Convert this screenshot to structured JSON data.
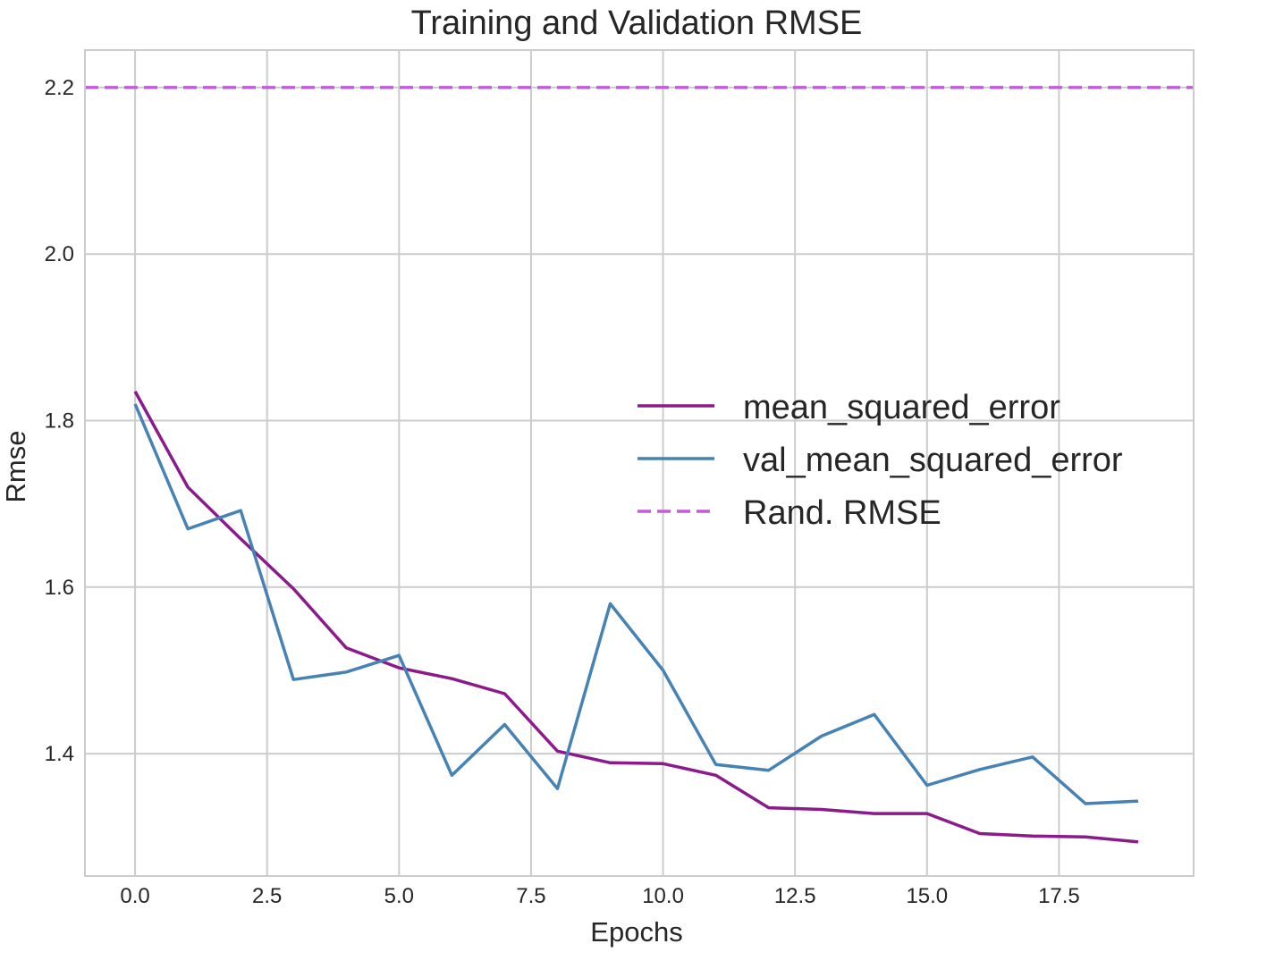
{
  "chart_data": {
    "type": "line",
    "title": "Training and Validation RMSE",
    "xlabel": "Epochs",
    "ylabel": "Rmse",
    "xlim": [
      -0.95,
      20.05
    ],
    "ylim": [
      1.253,
      2.245
    ],
    "xticks": [
      0.0,
      2.5,
      5.0,
      7.5,
      10.0,
      12.5,
      15.0,
      17.5
    ],
    "xtick_labels": [
      "0.0",
      "2.5",
      "5.0",
      "7.5",
      "10.0",
      "12.5",
      "15.0",
      "17.5"
    ],
    "yticks": [
      1.4,
      1.6,
      1.8,
      2.0,
      2.2
    ],
    "ytick_labels": [
      "1.4",
      "1.6",
      "1.8",
      "2.0",
      "2.2"
    ],
    "grid": true,
    "legend_position": "center-right",
    "x": [
      0,
      1,
      2,
      3,
      4,
      5,
      6,
      7,
      8,
      9,
      10,
      11,
      12,
      13,
      14,
      15,
      16,
      17,
      18,
      19
    ],
    "series": [
      {
        "name": "mean_squared_error",
        "color": "#8b1a8b",
        "style": "solid",
        "values": [
          1.835,
          1.72,
          1.658,
          1.598,
          1.527,
          1.503,
          1.49,
          1.472,
          1.403,
          1.389,
          1.388,
          1.374,
          1.335,
          1.333,
          1.328,
          1.328,
          1.304,
          1.301,
          1.3,
          1.294
        ]
      },
      {
        "name": "val_mean_squared_error",
        "color": "#4682b4",
        "style": "solid",
        "values": [
          1.82,
          1.67,
          1.692,
          1.489,
          1.498,
          1.518,
          1.374,
          1.435,
          1.358,
          1.58,
          1.5,
          1.387,
          1.38,
          1.421,
          1.447,
          1.362,
          1.381,
          1.396,
          1.34,
          1.343
        ]
      },
      {
        "name": "Rand. RMSE",
        "color": "#c35cdc",
        "style": "dashed",
        "type": "hline",
        "value": 2.2
      }
    ]
  }
}
